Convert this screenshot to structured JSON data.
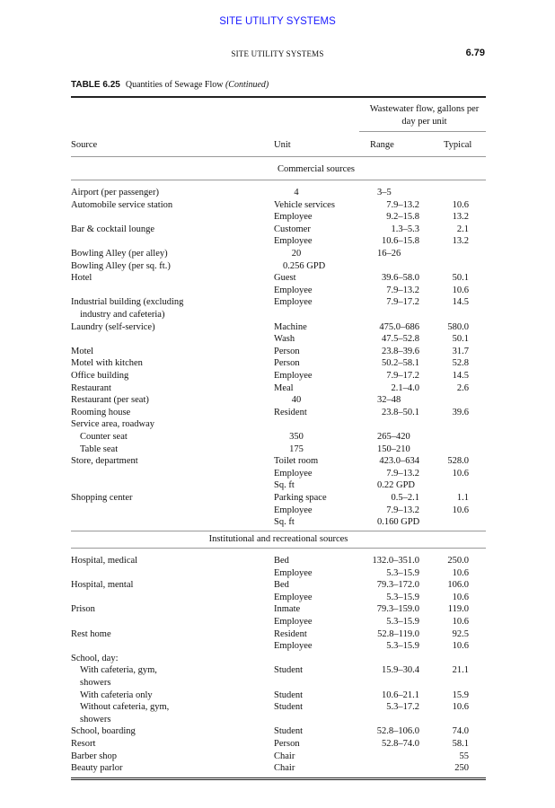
{
  "banner": "SITE UTILITY SYSTEMS",
  "running_head": "SITE UTILITY SYSTEMS",
  "page_number": "6.79",
  "table": {
    "label": "TABLE 6.25",
    "title": "Quantities of Sewage Flow",
    "title_suffix": "(Continued)",
    "group_header_line1": "Wastewater flow, gallons per",
    "group_header_line2": "day per unit",
    "columns": [
      "Source",
      "Unit",
      "Range",
      "Typical"
    ],
    "sections": [
      {
        "title": "Commercial sources",
        "rows": [
          [
            "Airport (per passenger)",
            "4",
            "3–5",
            ""
          ],
          [
            "Automobile service station",
            "Vehicle services",
            "7.9–13.2",
            "10.6"
          ],
          [
            "",
            "Employee",
            "9.2–15.8",
            "13.2"
          ],
          [
            "Bar & cocktail lounge",
            "Customer",
            "1.3–5.3",
            "2.1"
          ],
          [
            "",
            "Employee",
            "10.6–15.8",
            "13.2"
          ],
          [
            "Bowling Alley (per alley)",
            "20",
            "16–26",
            ""
          ],
          [
            "Bowling Alley (per sq. ft.)",
            "0.256 GPD",
            "",
            ""
          ],
          [
            "Hotel",
            "Guest",
            "39.6–58.0",
            "50.1"
          ],
          [
            "",
            "Employee",
            "7.9–13.2",
            "10.6"
          ],
          [
            "Industrial building (excluding",
            "Employee",
            "7.9–17.2",
            "14.5"
          ],
          [
            "  industry and cafeteria)",
            "",
            "",
            ""
          ],
          [
            "Laundry (self-service)",
            "Machine",
            "475.0–686",
            "580.0"
          ],
          [
            "",
            "Wash",
            "47.5–52.8",
            "50.1"
          ],
          [
            "Motel",
            "Person",
            "23.8–39.6",
            "31.7"
          ],
          [
            "Motel with kitchen",
            "Person",
            "50.2–58.1",
            "52.8"
          ],
          [
            "Office building",
            "Employee",
            "7.9–17.2",
            "14.5"
          ],
          [
            "Restaurant",
            "Meal",
            "2.1–4.0",
            "2.6"
          ],
          [
            "Restaurant (per seat)",
            "40",
            "32–48",
            ""
          ],
          [
            "Rooming house",
            "Resident",
            "23.8–50.1",
            "39.6"
          ],
          [
            "Service area, roadway",
            "",
            "",
            ""
          ],
          [
            "  Counter seat",
            "350",
            "265–420",
            ""
          ],
          [
            "  Table seat",
            "175",
            "150–210",
            ""
          ],
          [
            "Store, department",
            "Toilet room",
            "423.0–634",
            "528.0"
          ],
          [
            "",
            "Employee",
            "7.9–13.2",
            "10.6"
          ],
          [
            "",
            "Sq. ft",
            "0.22 GPD",
            ""
          ],
          [
            "Shopping center",
            "Parking space",
            "0.5–2.1",
            "1.1"
          ],
          [
            "",
            "Employee",
            "7.9–13.2",
            "10.6"
          ],
          [
            "",
            "Sq. ft",
            "0.160 GPD",
            ""
          ]
        ]
      },
      {
        "title": "Institutional and recreational sources",
        "rows": [
          [
            "Hospital, medical",
            "Bed",
            "132.0–351.0",
            "250.0"
          ],
          [
            "",
            "Employee",
            "5.3–15.9",
            "10.6"
          ],
          [
            "Hospital, mental",
            "Bed",
            "79.3–172.0",
            "106.0"
          ],
          [
            "",
            "Employee",
            "5.3–15.9",
            "10.6"
          ],
          [
            "Prison",
            "Inmate",
            "79.3–159.0",
            "119.0"
          ],
          [
            "",
            "Employee",
            "5.3–15.9",
            "10.6"
          ],
          [
            "Rest home",
            "Resident",
            "52.8–119.0",
            "92.5"
          ],
          [
            "",
            "Employee",
            "5.3–15.9",
            "10.6"
          ],
          [
            "School, day:",
            "",
            "",
            ""
          ],
          [
            "  With cafeteria, gym,",
            "Student",
            "15.9–30.4",
            "21.1"
          ],
          [
            "  showers",
            "",
            "",
            ""
          ],
          [
            "  With cafeteria only",
            "Student",
            "10.6–21.1",
            "15.9"
          ],
          [
            "  Without cafeteria, gym,",
            "Student",
            "5.3–17.2",
            "10.6"
          ],
          [
            "  showers",
            "",
            "",
            ""
          ],
          [
            "School, boarding",
            "Student",
            "52.8–106.0",
            "74.0"
          ],
          [
            "Resort",
            "Person",
            "52.8–74.0",
            "58.1"
          ],
          [
            "Barber shop",
            "Chair",
            "",
            "55"
          ],
          [
            "Beauty parlor",
            "Chair",
            "",
            "250"
          ]
        ]
      }
    ]
  }
}
